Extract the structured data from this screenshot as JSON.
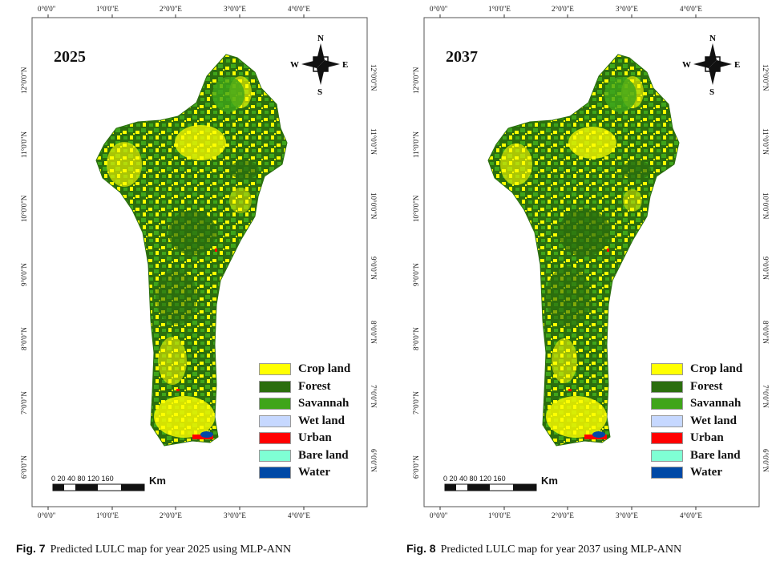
{
  "figures": [
    {
      "year": "2025",
      "caption_label": "Fig. 7",
      "caption_text": "Predicted LULC map for year 2025 using MLP-ANN"
    },
    {
      "year": "2037",
      "caption_label": "Fig. 8",
      "caption_text": "Predicted LULC map for year 2037 using MLP-ANN"
    }
  ],
  "longitude_ticks": [
    "0°0'0\"",
    "1°0'0\"E",
    "2°0'0\"E",
    "3°0'0\"E",
    "4°0'0\"E"
  ],
  "latitude_ticks": [
    "12°0'0\"N",
    "11°0'0\"N",
    "10°0'0\"N",
    "9°0'0\"N",
    "8°0'0\"N",
    "7°0'0\"N",
    "6°0'0\"N"
  ],
  "north_arrow": {
    "n": "N",
    "s": "S",
    "e": "E",
    "w": "W"
  },
  "scale_bar": {
    "ticks": "0  20 40      80       120      160",
    "unit": "Km"
  },
  "legend": [
    {
      "label": "Crop land",
      "color": "#ffff00"
    },
    {
      "label": "Forest",
      "color": "#2b6e0e"
    },
    {
      "label": "Savannah",
      "color": "#3fa51a"
    },
    {
      "label": "Wet land",
      "color": "#c6d8ff"
    },
    {
      "label": "Urban",
      "color": "#ff0000"
    },
    {
      "label": "Bare land",
      "color": "#7fffd4"
    },
    {
      "label": "Water",
      "color": "#0049a6"
    }
  ]
}
